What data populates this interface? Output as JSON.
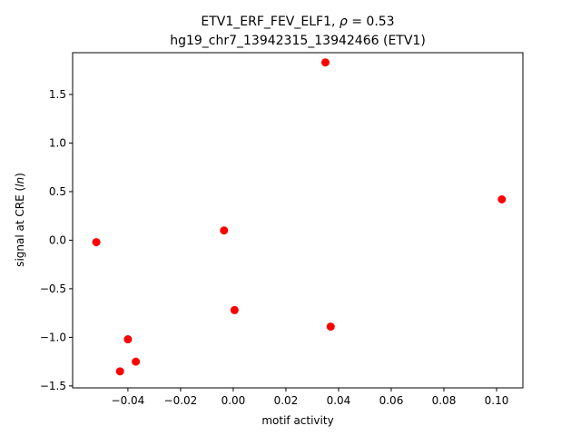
{
  "chart_data": {
    "type": "scatter",
    "title": "ETV1_ERF_FEV_ELF1, ρ = 0.53",
    "subtitle": "hg19_chr7_13942315_13942466 (ETV1)",
    "xlabel": "motif activity",
    "ylabel": "signal at CRE (ln)",
    "xlim": [
      -0.061,
      0.11
    ],
    "ylim": [
      -1.52,
      1.93
    ],
    "xticks": [
      -0.04,
      -0.02,
      0.0,
      0.02,
      0.04,
      0.06,
      0.08,
      0.1
    ],
    "xtick_labels": [
      "−0.04",
      "−0.02",
      "0.00",
      "0.02",
      "0.04",
      "0.06",
      "0.08",
      "0.10"
    ],
    "yticks": [
      -1.5,
      -1.0,
      -0.5,
      0.0,
      0.5,
      1.0,
      1.5
    ],
    "ytick_labels": [
      "−1.5",
      "−1.0",
      "−0.5",
      "0.0",
      "0.5",
      "1.0",
      "1.5"
    ],
    "grid": false,
    "marker_color": "#ff0000",
    "points": [
      {
        "x": -0.052,
        "y": -0.02
      },
      {
        "x": -0.043,
        "y": -1.35
      },
      {
        "x": -0.04,
        "y": -1.02
      },
      {
        "x": -0.037,
        "y": -1.25
      },
      {
        "x": -0.0035,
        "y": 0.1
      },
      {
        "x": 0.0005,
        "y": -0.72
      },
      {
        "x": 0.035,
        "y": 1.83
      },
      {
        "x": 0.037,
        "y": -0.89
      },
      {
        "x": 0.102,
        "y": 0.42
      }
    ]
  }
}
